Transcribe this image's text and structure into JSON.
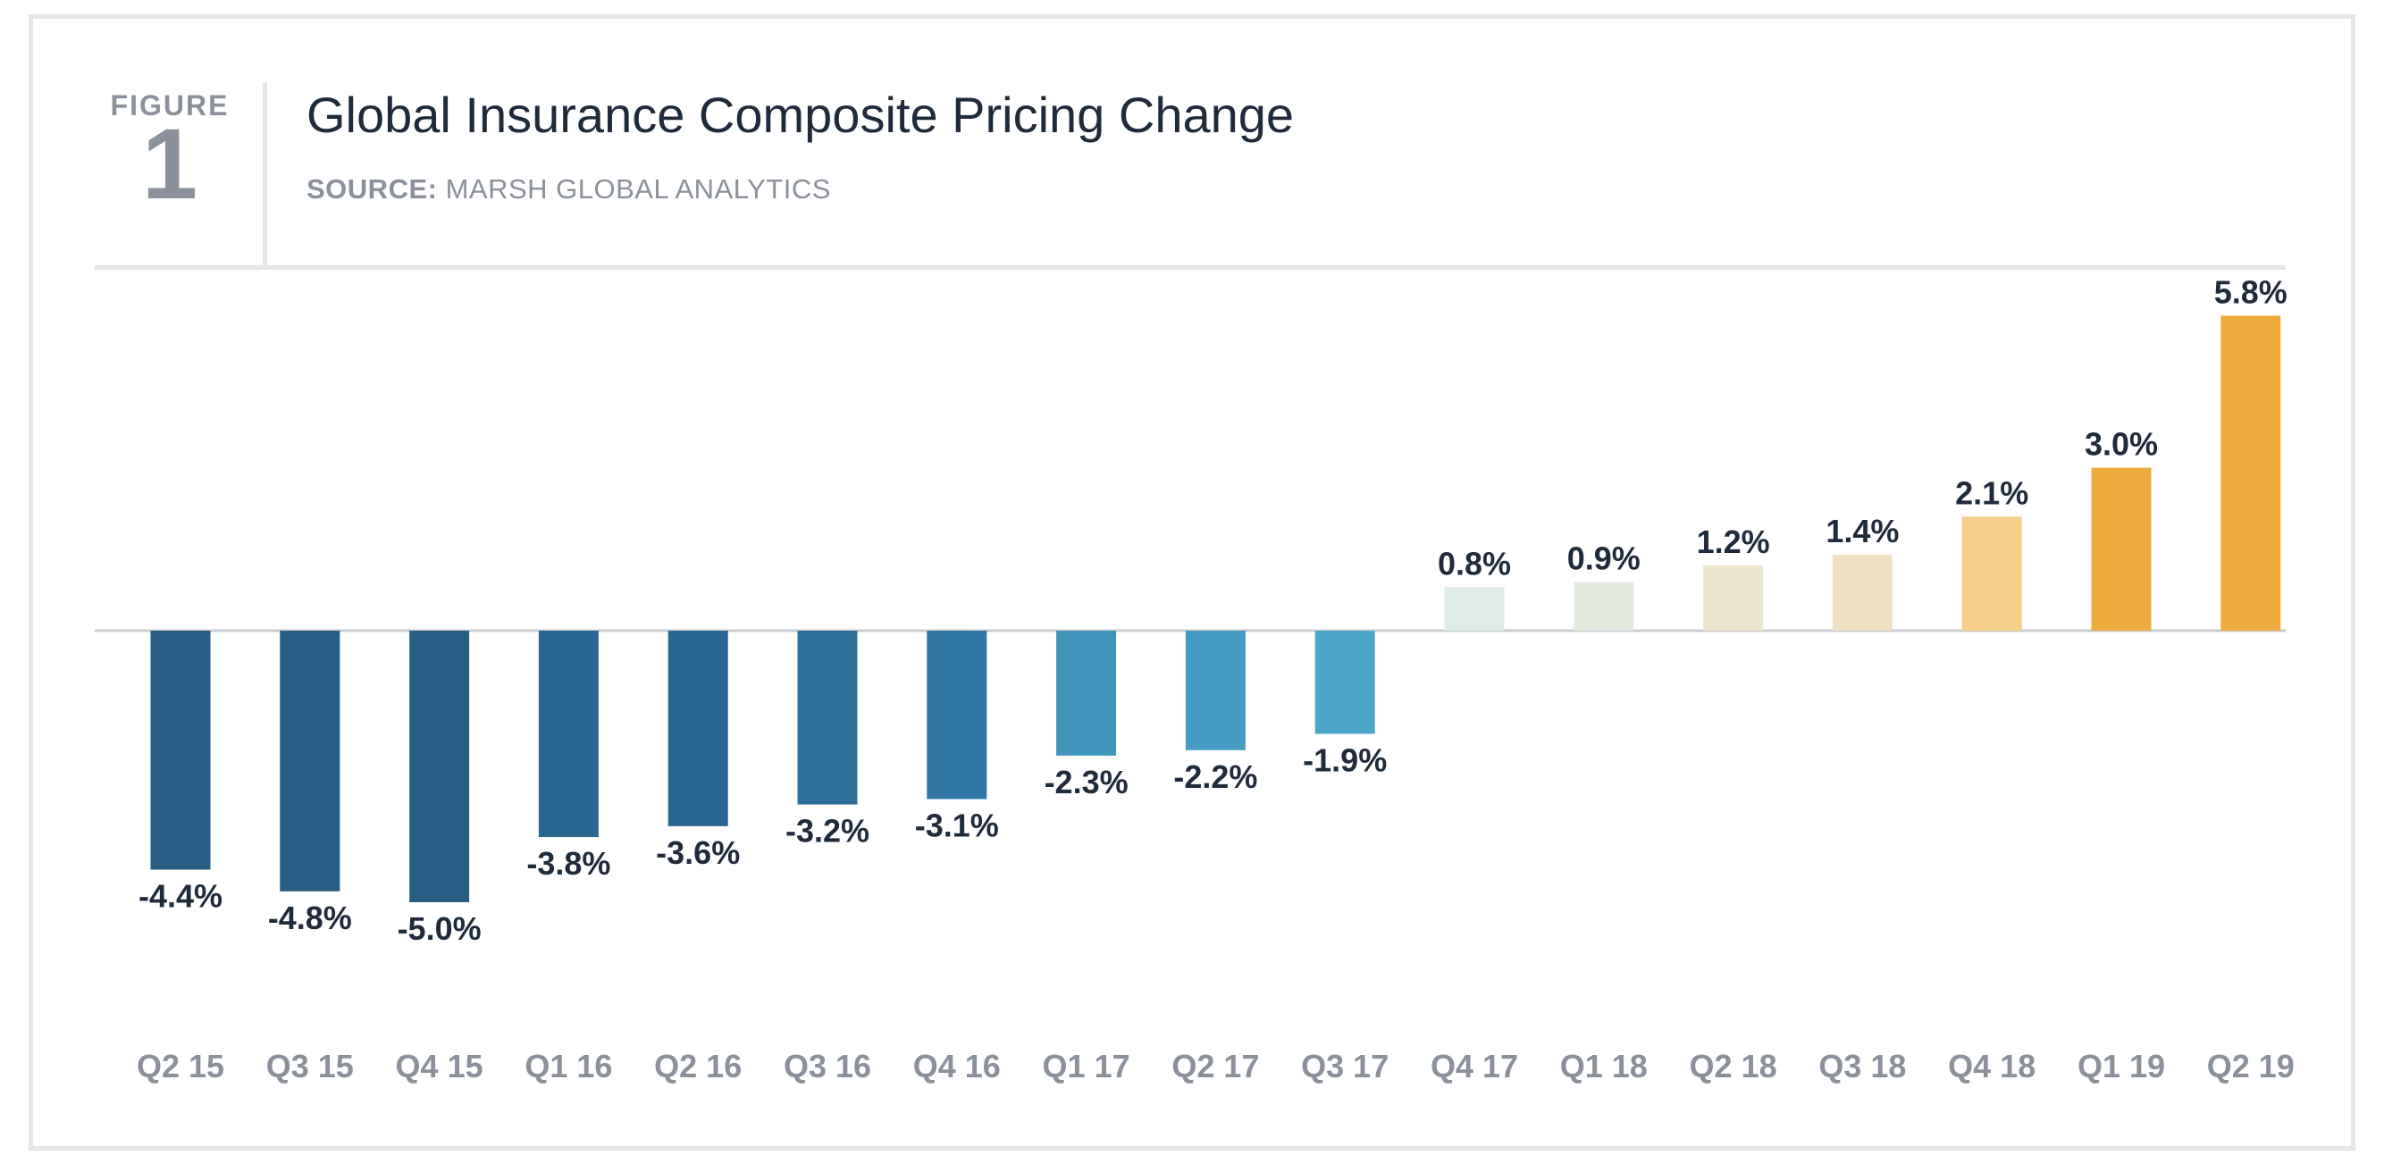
{
  "figure": {
    "label": "FIGURE",
    "number": "1"
  },
  "header": {
    "title": "Global Insurance Composite Pricing Change",
    "source_label": "SOURCE:",
    "source_text": "MARSH GLOBAL ANALYTICS"
  },
  "chart_data": {
    "type": "bar",
    "title": "Global Insurance Composite Pricing Change",
    "xlabel": "",
    "ylabel": "",
    "unit": "%",
    "categories": [
      "Q2 15",
      "Q3 15",
      "Q4 15",
      "Q1 16",
      "Q2 16",
      "Q3 16",
      "Q4 16",
      "Q1 17",
      "Q2 17",
      "Q3 17",
      "Q4 17",
      "Q1 18",
      "Q2 18",
      "Q3 18",
      "Q4 18",
      "Q1 19",
      "Q2 19"
    ],
    "values": [
      -4.4,
      -4.8,
      -5.0,
      -3.8,
      -3.6,
      -3.2,
      -3.1,
      -2.3,
      -2.2,
      -1.9,
      0.8,
      0.9,
      1.2,
      1.4,
      2.1,
      3.0,
      5.8
    ],
    "value_labels": [
      "-4.4%",
      "-4.8%",
      "-5.0%",
      "-3.8%",
      "-3.6%",
      "-3.2%",
      "-3.1%",
      "-2.3%",
      "-2.2%",
      "-1.9%",
      "0.8%",
      "0.9%",
      "1.2%",
      "1.4%",
      "2.1%",
      "3.0%",
      "5.8%"
    ],
    "colors": [
      "#285e84",
      "#285e84",
      "#285e84",
      "#2a6690",
      "#2a6690",
      "#2e7099",
      "#2f78a6",
      "#4193ba",
      "#459bc1",
      "#4ba6c8",
      "#e0ede7",
      "#e3ebe1",
      "#ede6ce",
      "#f0e1c2",
      "#f6cf8d",
      "#eeac3f",
      "#eeac3f"
    ],
    "ylim": [
      -5.0,
      5.8
    ],
    "grid": false,
    "legend": "none"
  }
}
